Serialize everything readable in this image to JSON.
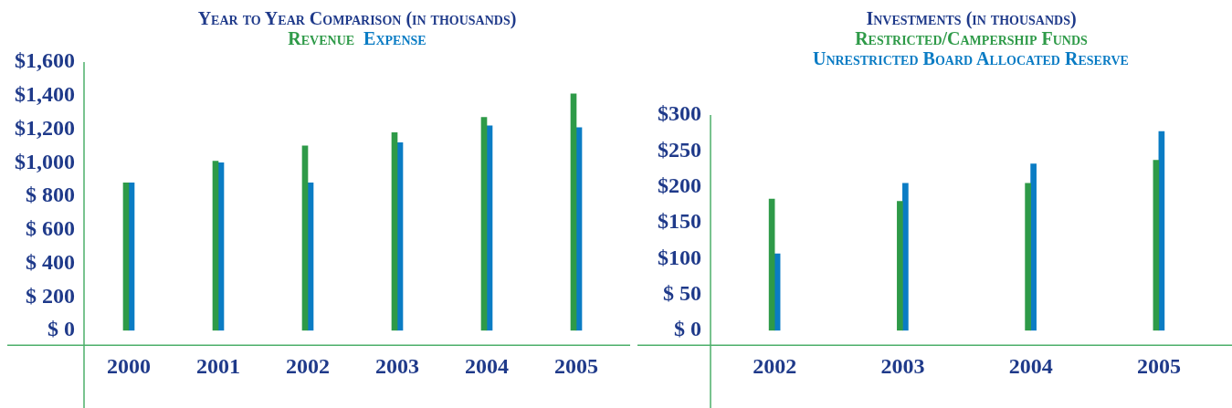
{
  "chart_data": [
    {
      "type": "bar",
      "title": "Year to Year Comparison (in thousands)",
      "categories": [
        "2000",
        "2001",
        "2002",
        "2003",
        "2004",
        "2005"
      ],
      "series": [
        {
          "name": "Revenue",
          "color": "#2e9a48",
          "values": [
            880,
            1010,
            1100,
            1180,
            1270,
            1410
          ]
        },
        {
          "name": "Expense",
          "color": "#0a7cc4",
          "values": [
            880,
            1000,
            880,
            1120,
            1220,
            1210
          ]
        }
      ],
      "ylim": [
        0,
        1600
      ],
      "yticks": [
        {
          "value": 0,
          "label": "$ 0"
        },
        {
          "value": 200,
          "label": "$ 200"
        },
        {
          "value": 400,
          "label": "$ 400"
        },
        {
          "value": 600,
          "label": "$ 600"
        },
        {
          "value": 800,
          "label": "$ 800"
        },
        {
          "value": 1000,
          "label": "$1,000"
        },
        {
          "value": 1200,
          "label": "$1,200"
        },
        {
          "value": 1400,
          "label": "$1,400"
        },
        {
          "value": 1600,
          "label": "$1,600"
        }
      ],
      "legend": "top"
    },
    {
      "type": "bar",
      "title": "Investments (in thousands)",
      "categories": [
        "2002",
        "2003",
        "2004",
        "2005"
      ],
      "series": [
        {
          "name": "Restricted/Campership Funds",
          "color": "#2e9a48",
          "values": [
            183,
            180,
            205,
            237
          ]
        },
        {
          "name": "Unrestricted Board Allocated Reserve",
          "color": "#0a7cc4",
          "values": [
            107,
            205,
            232,
            277
          ]
        }
      ],
      "ylim": [
        0,
        300
      ],
      "yticks": [
        {
          "value": 0,
          "label": "$ 0"
        },
        {
          "value": 50,
          "label": "$ 50"
        },
        {
          "value": 100,
          "label": "$100"
        },
        {
          "value": 150,
          "label": "$150"
        },
        {
          "value": 200,
          "label": "$200"
        },
        {
          "value": 250,
          "label": "$250"
        },
        {
          "value": 300,
          "label": "$300"
        }
      ],
      "legend": "top"
    }
  ]
}
